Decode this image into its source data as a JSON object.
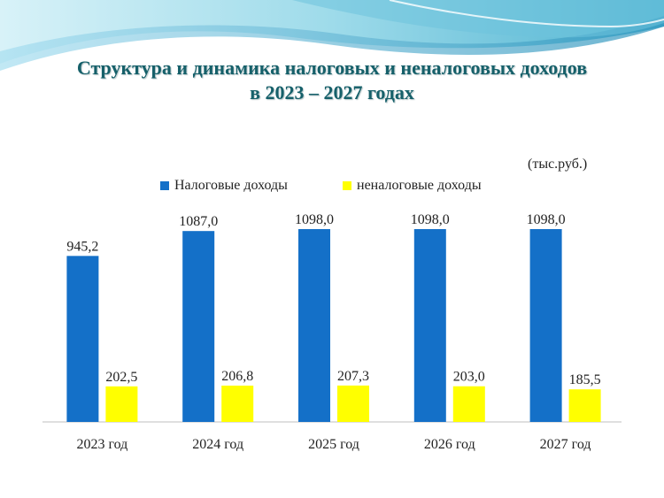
{
  "title": {
    "line1": "Структура и динамика налоговых и неналоговых доходов",
    "line2": "в 2023 – 2027 годах"
  },
  "unit_label": "(тыс.руб.)",
  "colors": {
    "title": "#16606a",
    "series_tax": "#1470c8",
    "series_nontax": "#ffff00",
    "wave_light": "#bde8f2",
    "wave_mid": "#7fcfe3",
    "wave_dark": "#3aa3c5"
  },
  "chart_data": {
    "type": "bar",
    "categories": [
      "2023 год",
      "2024 год",
      "2025 год",
      "2026 год",
      "2027 год"
    ],
    "series": [
      {
        "name": "Налоговые доходы",
        "values": [
          945.2,
          1087.0,
          1098.0,
          1098.0,
          1098.0
        ],
        "labels": [
          "945,2",
          "1087,0",
          "1098,0",
          "1098,0",
          "1098,0"
        ],
        "color": "#1470c8"
      },
      {
        "name": "неналоговые доходы",
        "values": [
          202.5,
          206.8,
          207.3,
          203.0,
          185.5
        ],
        "labels": [
          "202,5",
          "206,8",
          "207,3",
          "203,0",
          "185,5"
        ],
        "color": "#ffff00"
      }
    ],
    "ylim": [
      0,
      1200
    ],
    "grid": false,
    "legend_position": "top"
  }
}
